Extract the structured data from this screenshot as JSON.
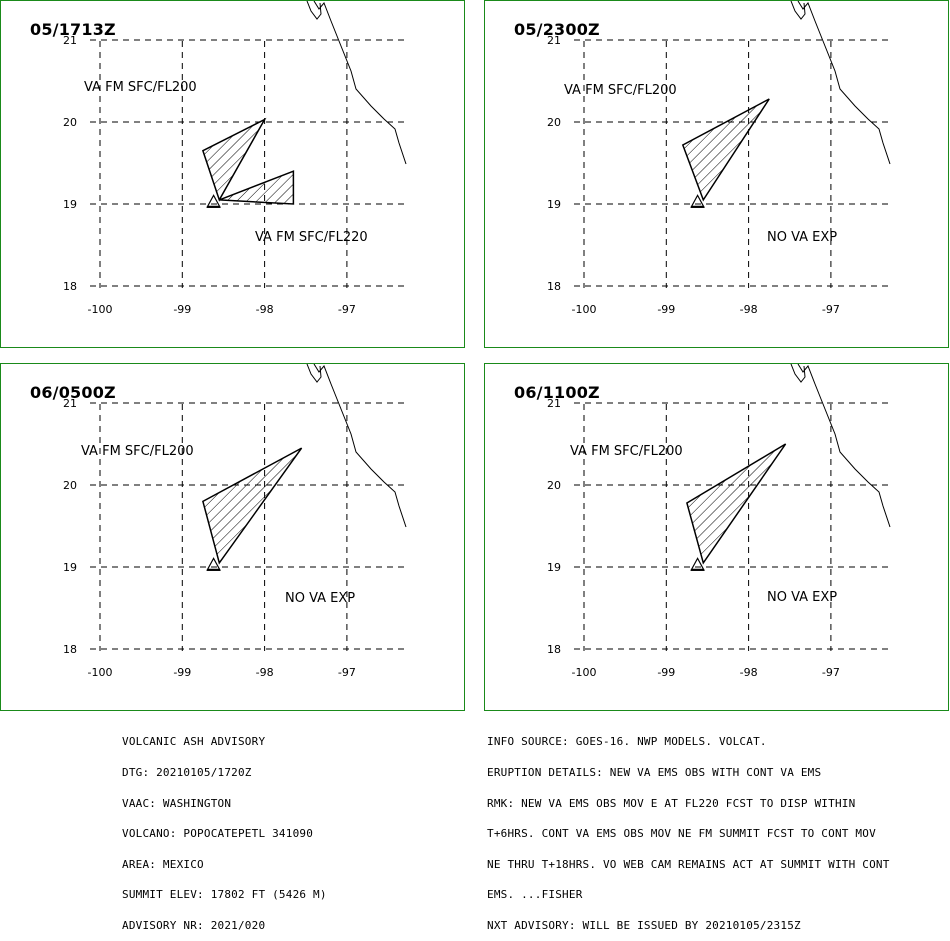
{
  "panels": [
    {
      "time": "05/1713Z",
      "labels": [
        "VA FM SFC/FL200",
        "VA FM SFC/FL220"
      ],
      "polygons": [
        [
          [
            -98.75,
            19.65
          ],
          [
            -98.0,
            20.03
          ],
          [
            -98.55,
            19.05
          ]
        ],
        [
          [
            -98.55,
            19.05
          ],
          [
            -97.65,
            19.4
          ],
          [
            -97.65,
            19.0
          ]
        ]
      ]
    },
    {
      "time": "05/2300Z",
      "labels": [
        "VA FM SFC/FL200",
        "NO VA EXP"
      ],
      "polygons": [
        [
          [
            -98.8,
            19.72
          ],
          [
            -97.75,
            20.28
          ],
          [
            -98.55,
            19.05
          ]
        ]
      ]
    },
    {
      "time": "06/0500Z",
      "labels": [
        "VA FM SFC/FL200",
        "NO VA EXP"
      ],
      "polygons": [
        [
          [
            -98.75,
            19.8
          ],
          [
            -97.55,
            20.45
          ],
          [
            -98.55,
            19.05
          ]
        ]
      ]
    },
    {
      "time": "06/1100Z",
      "labels": [
        "VA FM SFC/FL200",
        "NO VA EXP"
      ],
      "polygons": [
        [
          [
            -98.75,
            19.78
          ],
          [
            -97.55,
            20.5
          ],
          [
            -98.55,
            19.05
          ]
        ]
      ]
    }
  ],
  "map": {
    "lon_ticks": [
      "-100",
      "-99",
      "-98",
      "-97"
    ],
    "lat_ticks": [
      "21",
      "20",
      "19",
      "18"
    ],
    "lon_values": [
      -100,
      -99,
      -98,
      -97
    ],
    "lat_values": [
      21,
      20,
      19,
      18
    ],
    "volcano": {
      "lon": -98.62,
      "lat": 19.02
    }
  },
  "advisory_left": [
    "VOLCANIC ASH ADVISORY",
    "DTG: 20210105/1720Z",
    "VAAC: WASHINGTON",
    "VOLCANO: POPOCATEPETL 341090",
    "AREA: MEXICO",
    "SUMMIT ELEV: 17802 FT (5426 M)",
    "ADVISORY NR: 2021/020"
  ],
  "advisory_right": [
    "INFO SOURCE: GOES-16. NWP MODELS. VOLCAT.",
    "ERUPTION DETAILS: NEW VA EMS OBS WITH CONT VA EMS",
    "RMK: NEW VA EMS OBS MOV E AT FL220 FCST TO DISP WITHIN",
    "T+6HRS. CONT VA EMS OBS MOV NE FM SUMMIT FCST TO CONT MOV",
    "NE THRU T+18HRS. VO WEB CAM REMAINS ACT AT SUMMIT WITH CONT",
    "EMS. ...FISHER",
    "NXT ADVISORY: WILL BE ISSUED BY 20210105/2315Z"
  ],
  "colors": {
    "border": "#1a8a1a",
    "lines": "#000000"
  }
}
